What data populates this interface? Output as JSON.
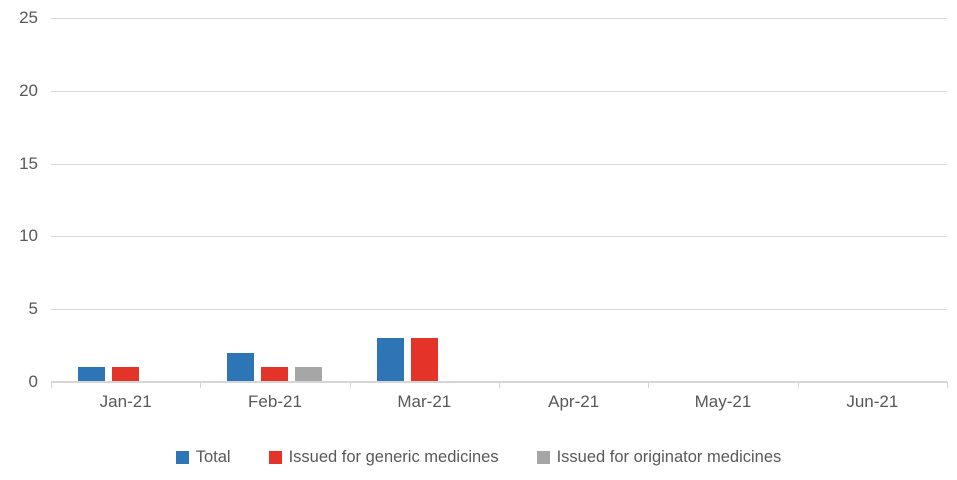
{
  "chart_data": {
    "type": "bar",
    "title": "",
    "xlabel": "",
    "ylabel": "",
    "categories": [
      "Jan-21",
      "Feb-21",
      "Mar-21",
      "Apr-21",
      "May-21",
      "Jun-21"
    ],
    "series": [
      {
        "name": "Total",
        "color": "#2e75b6",
        "values": [
          1,
          2,
          3,
          0,
          0,
          0
        ]
      },
      {
        "name": "Issued for generic medicines",
        "color": "#e43328",
        "values": [
          1,
          1,
          3,
          0,
          0,
          0
        ]
      },
      {
        "name": "Issued for originator medicines",
        "color": "#a6a6a6",
        "values": [
          0,
          1,
          0,
          0,
          0,
          0
        ]
      }
    ],
    "ylim": [
      0,
      25
    ],
    "yticks": [
      0,
      5,
      10,
      15,
      20,
      25
    ],
    "grid": true,
    "legend_position": "bottom"
  },
  "colors": {
    "gridline": "#d9d9d9",
    "axis_line": "#d6d6d6",
    "label_text": "#595959",
    "background": "#ffffff"
  }
}
